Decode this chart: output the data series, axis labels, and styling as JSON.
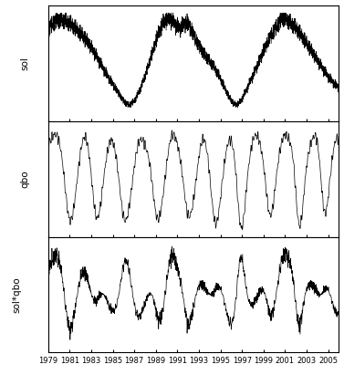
{
  "title": "",
  "xlabel": "",
  "start_year": 1979,
  "end_year": 2006,
  "x_tick_years": [
    1979,
    1981,
    1983,
    1985,
    1987,
    1989,
    1991,
    1993,
    1995,
    1997,
    1999,
    2001,
    2003,
    2005
  ],
  "panel_labels": [
    "sol",
    "qbo",
    "sol*qbo"
  ],
  "line_color": "#000000",
  "line_width": 0.5,
  "background_color": "#ffffff",
  "fig_width": 3.77,
  "fig_height": 4.22,
  "dpi": 100
}
